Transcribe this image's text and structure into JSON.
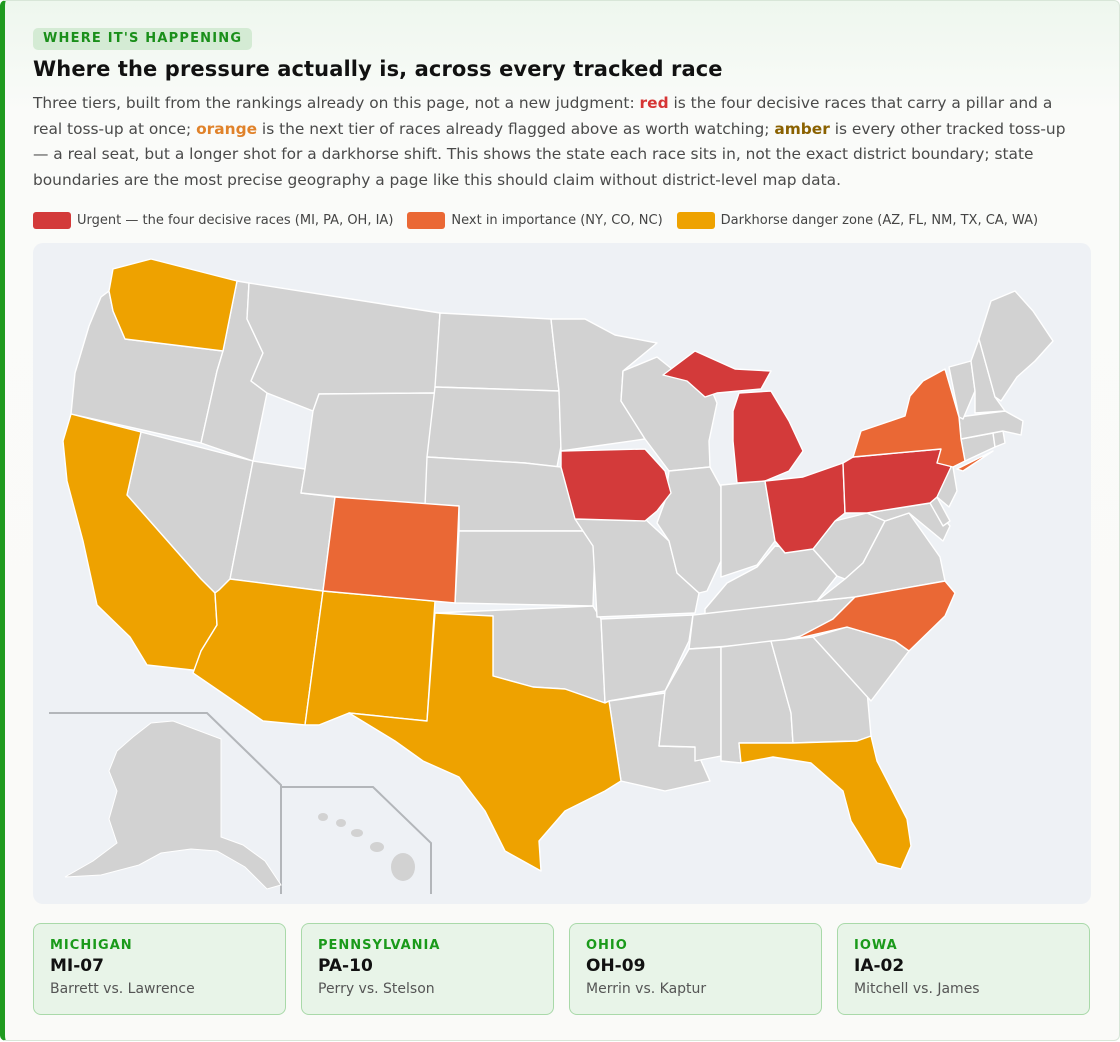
{
  "eyebrow": "WHERE IT'S HAPPENING",
  "title": "Where the pressure actually is, across every tracked race",
  "intro": {
    "p1": "Three tiers, built from the rankings already on this page, not a new judgment: ",
    "red": "red",
    "p2": " is the four decisive races that carry a pillar and a real toss-up at once; ",
    "orange": "orange",
    "p3": " is the next tier of races already flagged above as worth watching; ",
    "amber": "amber",
    "p4": " is every other tracked toss-up — a real seat, but a longer shot for a darkhorse shift. This shows the state each race sits in, not the exact district boundary; state boundaries are the most precise geography a page like this should claim without district-level map data."
  },
  "legend": [
    {
      "label": "Urgent — the four decisive races (MI, PA, OH, IA)",
      "color": "#d33a3a"
    },
    {
      "label": "Next in importance (NY, CO, NC)",
      "color": "#ea6835"
    },
    {
      "label": "Darkhorse danger zone (AZ, FL, NM, TX, CA, WA)",
      "color": "#eea200"
    }
  ],
  "map": {
    "base_color": "#d2d2d2",
    "background": "#eef1f5",
    "tiers": {
      "urgent": [
        "MI",
        "PA",
        "OH",
        "IA"
      ],
      "next": [
        "NY",
        "CO",
        "NC"
      ],
      "darkhorse": [
        "AZ",
        "FL",
        "NM",
        "TX",
        "CA",
        "WA"
      ]
    }
  },
  "races": [
    {
      "state": "MICHIGAN",
      "district": "MI-07",
      "matchup": "Barrett vs. Lawrence"
    },
    {
      "state": "PENNSYLVANIA",
      "district": "PA-10",
      "matchup": "Perry vs. Stelson"
    },
    {
      "state": "OHIO",
      "district": "OH-09",
      "matchup": "Merrin vs. Kaptur"
    },
    {
      "state": "IOWA",
      "district": "IA-02",
      "matchup": "Mitchell vs. James"
    }
  ]
}
